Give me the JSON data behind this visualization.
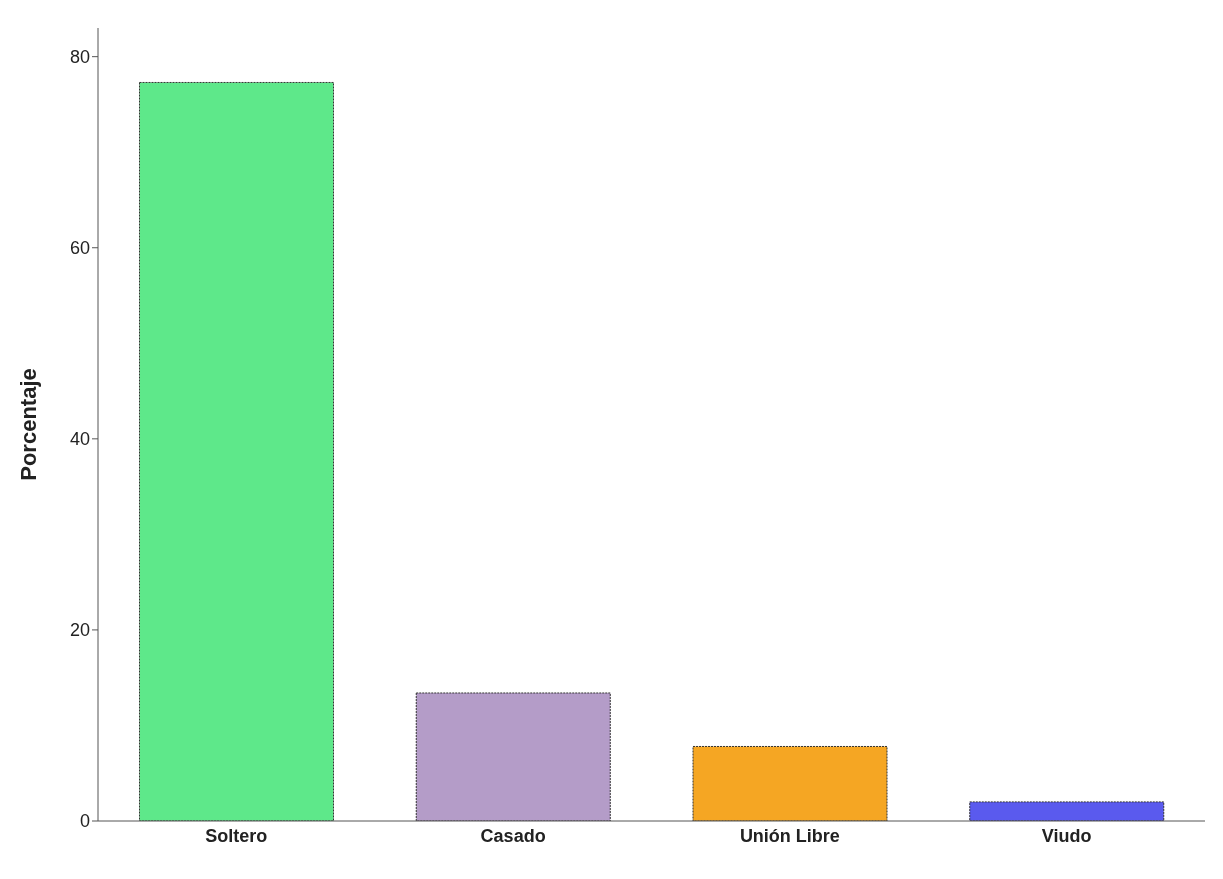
{
  "chart_data": {
    "type": "bar",
    "ylabel": "Porcentaje",
    "categories": [
      "Soltero",
      "Casado",
      "Unión Libre",
      "Viudo"
    ],
    "values": [
      77.3,
      13.4,
      7.8,
      2.0
    ],
    "colors": [
      "#5ee88a",
      "#b49cc8",
      "#f5a623",
      "#5a5aee"
    ],
    "ylim": [
      0,
      83
    ],
    "yticks": [
      0,
      20,
      40,
      60,
      80
    ],
    "grid": false,
    "legend": false
  }
}
